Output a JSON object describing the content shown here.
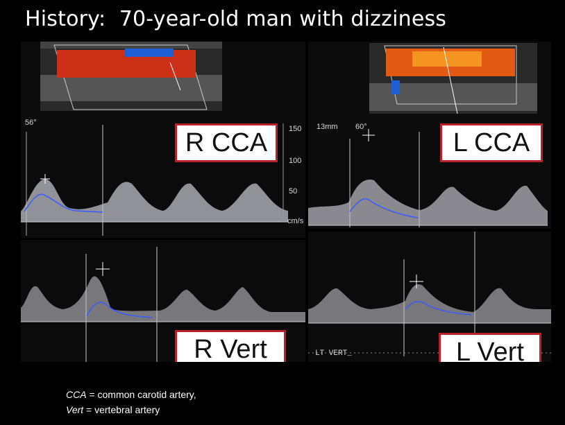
{
  "slide": {
    "title": "History:  70-year-old man with dizziness"
  },
  "panels": {
    "r_cca": {
      "label": "R CCA",
      "angle": "56°",
      "scale_ticks": [
        "150",
        "100",
        "50",
        "cm/s"
      ]
    },
    "l_cca": {
      "label": "L CCA",
      "depth": "13mm",
      "angle": "60°"
    },
    "r_vert": {
      "label": "R Vert"
    },
    "l_vert": {
      "label": "L Vert",
      "tag": "LT VERT_"
    }
  },
  "footnote": {
    "cca_abbr": "CCA",
    "cca_def": " = common carotid artery,",
    "vert_abbr": "Vert",
    "vert_def": " = vertebral artery"
  },
  "colors": {
    "frame_border": "#b8202a",
    "doppler_red": "#d83a18",
    "doppler_orange": "#f07a1a",
    "envelope_blue": "#3a5cff"
  }
}
